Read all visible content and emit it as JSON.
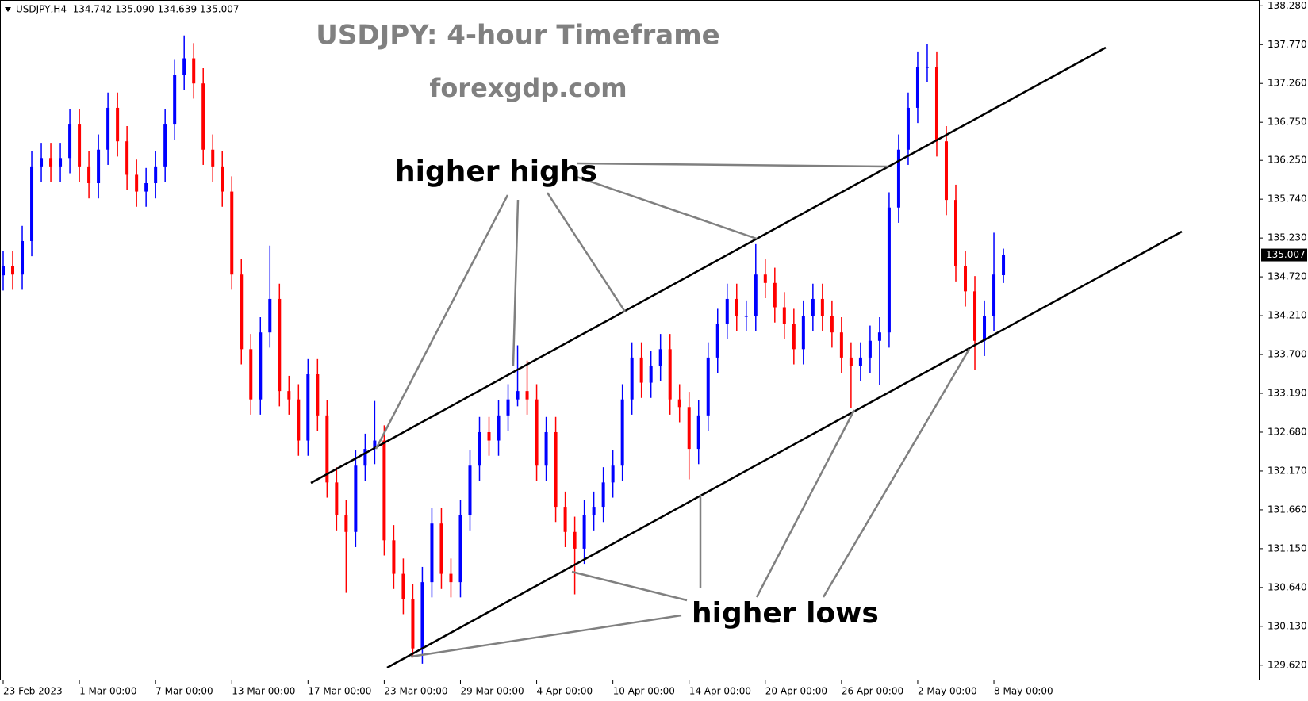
{
  "chart_data": {
    "type": "candlestick",
    "header": "USDJPY,H4  134.742 135.090 134.639 135.007",
    "title": "USDJPY: 4-hour Timeframe",
    "subtitle": "forexgdp.com",
    "annotations": [
      "higher highs",
      "higher lows"
    ],
    "up_color": "#0000ff",
    "down_color": "#ff0000",
    "last_price": 135.007,
    "ylim": [
      129.42,
      138.335
    ],
    "yticks": [
      {
        "value": 138.28,
        "label": "138.280"
      },
      {
        "value": 137.77,
        "label": "137.770"
      },
      {
        "value": 137.26,
        "label": "137.260"
      },
      {
        "value": 136.75,
        "label": "136.750"
      },
      {
        "value": 136.25,
        "label": "136.250"
      },
      {
        "value": 135.74,
        "label": "135.740"
      },
      {
        "value": 135.23,
        "label": "135.230"
      },
      {
        "value": 134.72,
        "label": "134.720"
      },
      {
        "value": 134.21,
        "label": "134.210"
      },
      {
        "value": 133.7,
        "label": "133.700"
      },
      {
        "value": 133.19,
        "label": "133.190"
      },
      {
        "value": 132.68,
        "label": "132.680"
      },
      {
        "value": 132.17,
        "label": "132.170"
      },
      {
        "value": 131.66,
        "label": "131.660"
      },
      {
        "value": 131.15,
        "label": "131.150"
      },
      {
        "value": 130.64,
        "label": "130.640"
      },
      {
        "value": 130.13,
        "label": "130.130"
      },
      {
        "value": 129.62,
        "label": "129.620"
      }
    ],
    "categories": [
      "23 Feb 2023",
      null,
      null,
      null,
      null,
      null,
      null,
      null,
      "1 Mar 00:00",
      null,
      null,
      null,
      null,
      null,
      null,
      null,
      "7 Mar 00:00",
      null,
      null,
      null,
      null,
      null,
      null,
      null,
      "13 Mar 00:00",
      null,
      null,
      null,
      null,
      null,
      null,
      null,
      "17 Mar 00:00",
      null,
      null,
      null,
      null,
      null,
      null,
      null,
      "23 Mar 00:00",
      null,
      null,
      null,
      null,
      null,
      null,
      null,
      "29 Mar 00:00",
      null,
      null,
      null,
      null,
      null,
      null,
      null,
      "4 Apr 00:00",
      null,
      null,
      null,
      null,
      null,
      null,
      null,
      "10 Apr 00:00",
      null,
      null,
      null,
      null,
      null,
      null,
      null,
      "14 Apr 00:00",
      null,
      null,
      null,
      null,
      null,
      null,
      null,
      "20 Apr 00:00",
      null,
      null,
      null,
      null,
      null,
      null,
      null,
      "26 Apr 00:00",
      null,
      null,
      null,
      null,
      null,
      null,
      null,
      "2 May 00:00",
      null,
      null,
      null,
      null,
      null,
      null,
      null,
      "8 May 00:00",
      null
    ],
    "candles": [
      [
        134.74,
        135.06,
        134.54,
        134.86
      ],
      [
        134.86,
        135.06,
        134.55,
        134.75
      ],
      [
        134.75,
        135.39,
        134.55,
        135.19
      ],
      [
        135.19,
        136.37,
        134.99,
        136.17
      ],
      [
        136.17,
        136.48,
        135.97,
        136.28
      ],
      [
        136.28,
        136.48,
        135.97,
        136.17
      ],
      [
        136.17,
        136.48,
        135.97,
        136.28
      ],
      [
        136.28,
        136.92,
        136.08,
        136.72
      ],
      [
        136.72,
        136.92,
        135.97,
        136.17
      ],
      [
        136.17,
        136.37,
        135.75,
        135.95
      ],
      [
        135.95,
        136.59,
        135.75,
        136.39
      ],
      [
        136.39,
        137.14,
        136.19,
        136.94
      ],
      [
        136.94,
        137.14,
        136.3,
        136.5
      ],
      [
        136.5,
        136.7,
        135.86,
        136.06
      ],
      [
        136.06,
        136.26,
        135.64,
        135.84
      ],
      [
        135.84,
        136.15,
        135.64,
        135.95
      ],
      [
        135.95,
        136.37,
        135.75,
        136.17
      ],
      [
        136.17,
        136.92,
        135.97,
        136.72
      ],
      [
        136.72,
        137.57,
        136.52,
        137.37
      ],
      [
        137.37,
        137.89,
        137.17,
        137.59
      ],
      [
        137.59,
        137.79,
        137.06,
        137.26
      ],
      [
        137.26,
        137.46,
        136.19,
        136.39
      ],
      [
        136.39,
        136.59,
        135.97,
        136.17
      ],
      [
        136.17,
        136.37,
        135.64,
        135.84
      ],
      [
        135.84,
        136.04,
        134.55,
        134.75
      ],
      [
        134.75,
        134.95,
        133.57,
        133.77
      ],
      [
        133.77,
        133.97,
        132.91,
        133.11
      ],
      [
        133.11,
        134.19,
        132.91,
        133.99
      ],
      [
        133.99,
        135.13,
        133.79,
        134.43
      ],
      [
        134.43,
        134.63,
        133.02,
        133.22
      ],
      [
        133.22,
        133.42,
        132.91,
        133.11
      ],
      [
        133.11,
        133.31,
        132.37,
        132.57
      ],
      [
        132.57,
        133.64,
        132.37,
        133.44
      ],
      [
        133.44,
        133.64,
        132.7,
        132.9
      ],
      [
        132.9,
        133.1,
        131.82,
        132.02
      ],
      [
        132.02,
        132.22,
        131.39,
        131.59
      ],
      [
        131.59,
        131.79,
        130.57,
        131.37
      ],
      [
        131.37,
        132.44,
        131.17,
        132.24
      ],
      [
        132.24,
        132.66,
        132.04,
        132.46
      ],
      [
        132.46,
        133.09,
        132.26,
        132.57
      ],
      [
        132.57,
        132.77,
        131.06,
        131.26
      ],
      [
        131.26,
        131.46,
        130.62,
        130.82
      ],
      [
        130.82,
        131.02,
        130.29,
        130.49
      ],
      [
        130.49,
        130.69,
        129.72,
        129.84
      ],
      [
        129.84,
        130.91,
        129.64,
        130.71
      ],
      [
        130.71,
        131.68,
        130.51,
        131.48
      ],
      [
        131.48,
        131.68,
        130.62,
        130.82
      ],
      [
        130.82,
        131.02,
        130.51,
        130.71
      ],
      [
        130.71,
        131.79,
        130.51,
        131.59
      ],
      [
        131.59,
        132.44,
        131.39,
        132.24
      ],
      [
        132.24,
        132.88,
        132.04,
        132.68
      ],
      [
        132.68,
        132.88,
        132.37,
        132.57
      ],
      [
        132.57,
        133.1,
        132.37,
        132.9
      ],
      [
        132.9,
        133.31,
        132.7,
        133.11
      ],
      [
        133.11,
        133.82,
        133.02,
        133.22
      ],
      [
        133.22,
        133.62,
        132.91,
        133.11
      ],
      [
        133.11,
        133.31,
        132.04,
        132.24
      ],
      [
        132.24,
        132.88,
        132.04,
        132.68
      ],
      [
        132.68,
        132.88,
        131.5,
        131.7
      ],
      [
        131.7,
        131.9,
        131.17,
        131.37
      ],
      [
        131.37,
        131.57,
        130.55,
        131.15
      ],
      [
        131.15,
        131.79,
        130.95,
        131.59
      ],
      [
        131.59,
        131.9,
        131.39,
        131.7
      ],
      [
        131.7,
        132.22,
        131.5,
        132.02
      ],
      [
        132.02,
        132.44,
        131.82,
        132.24
      ],
      [
        132.24,
        133.31,
        132.04,
        133.11
      ],
      [
        133.11,
        133.86,
        132.91,
        133.66
      ],
      [
        133.66,
        133.86,
        133.13,
        133.33
      ],
      [
        133.33,
        133.75,
        133.13,
        133.55
      ],
      [
        133.55,
        133.97,
        133.35,
        133.77
      ],
      [
        133.77,
        133.97,
        132.91,
        133.11
      ],
      [
        133.11,
        133.31,
        132.81,
        133.01
      ],
      [
        133.01,
        133.21,
        132.06,
        132.46
      ],
      [
        132.46,
        133.1,
        132.26,
        132.9
      ],
      [
        132.9,
        133.86,
        132.7,
        133.66
      ],
      [
        133.66,
        134.3,
        133.46,
        134.1
      ],
      [
        134.1,
        134.63,
        133.9,
        134.43
      ],
      [
        134.43,
        134.63,
        134.01,
        134.21
      ],
      [
        134.21,
        134.41,
        134.01,
        134.21
      ],
      [
        134.21,
        135.15,
        134.01,
        134.75
      ],
      [
        134.75,
        134.95,
        134.44,
        134.64
      ],
      [
        134.64,
        134.84,
        134.12,
        134.32
      ],
      [
        134.32,
        134.52,
        133.9,
        134.1
      ],
      [
        134.1,
        134.3,
        133.57,
        133.77
      ],
      [
        133.77,
        134.41,
        133.57,
        134.21
      ],
      [
        134.21,
        134.63,
        134.01,
        134.43
      ],
      [
        134.43,
        134.63,
        134.01,
        134.21
      ],
      [
        134.21,
        134.41,
        133.79,
        133.99
      ],
      [
        133.99,
        134.19,
        133.46,
        133.66
      ],
      [
        133.66,
        133.86,
        133.0,
        133.55
      ],
      [
        133.55,
        133.86,
        133.35,
        133.66
      ],
      [
        133.66,
        134.08,
        133.46,
        133.88
      ],
      [
        133.88,
        134.19,
        133.3,
        133.99
      ],
      [
        133.99,
        135.83,
        133.79,
        135.63
      ],
      [
        135.63,
        136.59,
        135.43,
        136.39
      ],
      [
        136.39,
        137.14,
        136.19,
        136.94
      ],
      [
        136.94,
        137.68,
        136.74,
        137.48
      ],
      [
        137.48,
        137.78,
        137.28,
        137.48
      ],
      [
        137.48,
        137.68,
        136.3,
        136.5
      ],
      [
        136.5,
        136.7,
        135.53,
        135.73
      ],
      [
        135.73,
        135.93,
        134.66,
        134.86
      ],
      [
        134.86,
        135.06,
        134.33,
        134.53
      ],
      [
        134.53,
        134.73,
        133.5,
        133.88
      ],
      [
        133.88,
        134.41,
        133.68,
        134.21
      ],
      [
        134.21,
        135.3,
        134.01,
        134.75
      ],
      [
        134.742,
        135.09,
        134.639,
        135.007
      ]
    ]
  }
}
